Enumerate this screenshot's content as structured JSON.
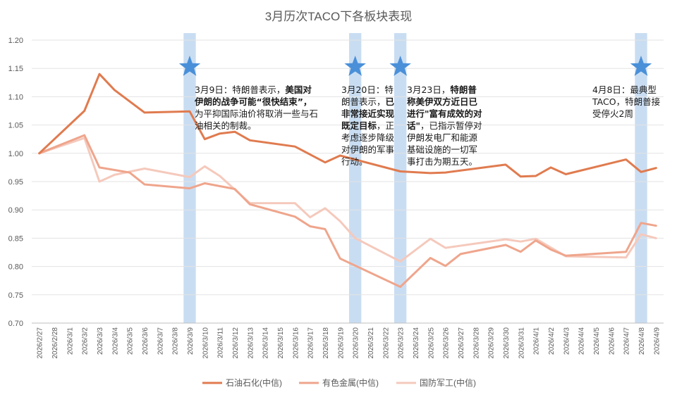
{
  "chart_data": {
    "type": "line",
    "title": "3月历次TACO下各板块表现",
    "ylim": [
      0.7,
      1.2
    ],
    "yticks": [
      "0.70",
      "0.75",
      "0.80",
      "0.85",
      "0.90",
      "0.95",
      "1.00",
      "1.05",
      "1.10",
      "1.15",
      "1.20"
    ],
    "grid": "horizontal",
    "legend_position": "bottom",
    "categories": [
      "2026/2/27",
      "2026/2/28",
      "2026/3/1",
      "2026/3/2",
      "2026/3/3",
      "2026/3/4",
      "2026/3/5",
      "2026/3/6",
      "2026/3/7",
      "2026/3/8",
      "2026/3/9",
      "2026/3/10",
      "2026/3/11",
      "2026/3/12",
      "2026/3/13",
      "2026/3/14",
      "2026/3/15",
      "2026/3/16",
      "2026/3/17",
      "2026/3/18",
      "2026/3/19",
      "2026/3/20",
      "2026/3/21",
      "2026/3/22",
      "2026/3/23",
      "2026/3/24",
      "2026/3/25",
      "2026/3/26",
      "2026/3/27",
      "2026/3/28",
      "2026/3/29",
      "2026/3/30",
      "2026/3/31",
      "2026/4/1",
      "2026/4/2",
      "2026/4/3",
      "2026/4/4",
      "2026/4/5",
      "2026/4/6",
      "2026/4/7",
      "2026/4/8",
      "2026/4/9"
    ],
    "series": [
      {
        "name": "石油石化(中信)",
        "color": "#E07B4F",
        "width": 3,
        "points": [
          [
            0,
            1.0
          ],
          [
            3,
            1.075
          ],
          [
            4,
            1.14
          ],
          [
            5,
            1.112
          ],
          [
            7,
            1.072
          ],
          [
            10,
            1.074
          ],
          [
            11,
            1.025
          ],
          [
            12,
            1.035
          ],
          [
            13,
            1.038
          ],
          [
            14,
            1.023
          ],
          [
            17,
            1.012
          ],
          [
            19,
            0.984
          ],
          [
            20,
            0.996
          ],
          [
            24,
            0.968
          ],
          [
            26,
            0.965
          ],
          [
            27,
            0.966
          ],
          [
            31,
            0.98
          ],
          [
            32,
            0.959
          ],
          [
            33,
            0.96
          ],
          [
            34,
            0.975
          ],
          [
            35,
            0.963
          ],
          [
            39,
            0.989
          ],
          [
            40,
            0.967
          ],
          [
            41,
            0.974
          ]
        ]
      },
      {
        "name": "有色金属(中信)",
        "color": "#EFA58C",
        "width": 3,
        "points": [
          [
            0,
            1.0
          ],
          [
            3,
            1.032
          ],
          [
            4,
            0.975
          ],
          [
            6,
            0.966
          ],
          [
            7,
            0.945
          ],
          [
            10,
            0.938
          ],
          [
            11,
            0.947
          ],
          [
            13,
            0.937
          ],
          [
            14,
            0.91
          ],
          [
            17,
            0.888
          ],
          [
            18,
            0.871
          ],
          [
            19,
            0.866
          ],
          [
            20,
            0.814
          ],
          [
            24,
            0.764
          ],
          [
            26,
            0.815
          ],
          [
            27,
            0.801
          ],
          [
            28,
            0.822
          ],
          [
            31,
            0.838
          ],
          [
            32,
            0.826
          ],
          [
            33,
            0.846
          ],
          [
            34,
            0.83
          ],
          [
            35,
            0.819
          ],
          [
            39,
            0.826
          ],
          [
            40,
            0.877
          ],
          [
            41,
            0.872
          ]
        ]
      },
      {
        "name": "国防军工(中信)",
        "color": "#F5C9BC",
        "width": 3,
        "points": [
          [
            0,
            1.0
          ],
          [
            3,
            1.027
          ],
          [
            4,
            0.95
          ],
          [
            5,
            0.962
          ],
          [
            7,
            0.973
          ],
          [
            10,
            0.958
          ],
          [
            11,
            0.977
          ],
          [
            12,
            0.96
          ],
          [
            14,
            0.912
          ],
          [
            17,
            0.912
          ],
          [
            18,
            0.887
          ],
          [
            19,
            0.903
          ],
          [
            20,
            0.88
          ],
          [
            21,
            0.85
          ],
          [
            24,
            0.809
          ],
          [
            26,
            0.849
          ],
          [
            27,
            0.833
          ],
          [
            31,
            0.848
          ],
          [
            32,
            0.844
          ],
          [
            33,
            0.849
          ],
          [
            35,
            0.818
          ],
          [
            39,
            0.816
          ],
          [
            40,
            0.857
          ],
          [
            41,
            0.85
          ]
        ]
      }
    ],
    "highlight_bands": [
      10,
      21,
      24,
      40
    ]
  },
  "annotations": [
    {
      "plain1": "3月9日：特朗普表示，",
      "bold": "美国对伊朗的战争可能“很快结束”，",
      "plain2": "为平抑国际油价将取消一些与石油相关的制裁。"
    },
    {
      "plain1": "3月20日：特朗普表示，",
      "bold": "已非常接近实现既定目标",
      "plain2": "，正考虑逐步降级对伊朗的军事行动。"
    },
    {
      "plain1": "3月23日，",
      "bold": "特朗普称美伊双方近日已进行\"富有成效的对话\"",
      "plain2": "，已指示暂停对伊朗发电厂和能源基础设施的一切军事打击为期五天。"
    },
    {
      "plain1": "4月8日：最典型 TACO，特朗普接受停火2周",
      "bold": "",
      "plain2": ""
    }
  ],
  "star_icon": "star-icon",
  "band_color": "#C9DDF2",
  "star_color": "#4A90D9"
}
